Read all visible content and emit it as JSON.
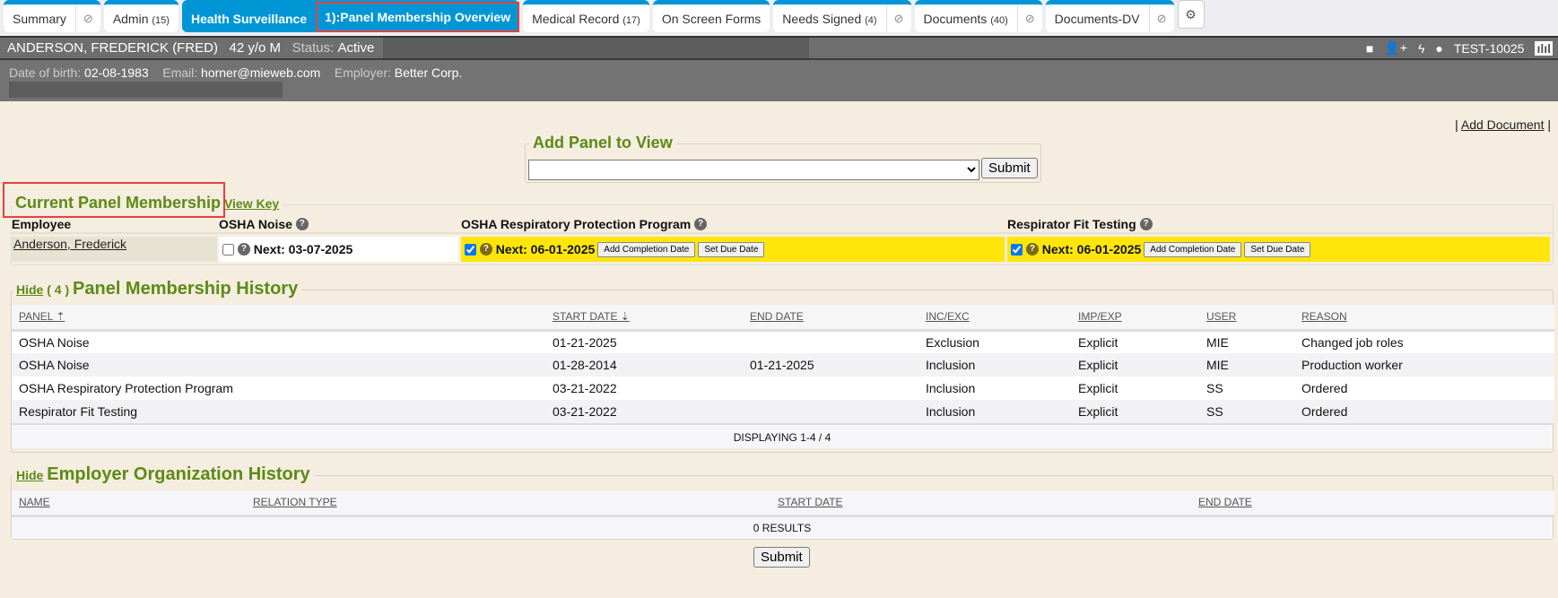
{
  "tabs": [
    {
      "label": "Summary",
      "count": "",
      "ext": true
    },
    {
      "label": "Admin",
      "count": "(15)",
      "ext": false
    },
    {
      "label": "Health Surveillance",
      "sub": "1):Panel Membership Overview",
      "active": true
    },
    {
      "label": "Medical Record",
      "count": "(17)",
      "ext": false
    },
    {
      "label": "On Screen Forms",
      "count": "",
      "ext": false
    },
    {
      "label": "Needs Signed",
      "count": "(4)",
      "ext": true
    },
    {
      "label": "Documents",
      "count": "(40)",
      "ext": true
    },
    {
      "label": "Documents-DV",
      "count": "",
      "ext": true
    }
  ],
  "patient": {
    "name": "ANDERSON, FREDERICK (FRED)",
    "age": "42 y/o M",
    "status_label": "Status:",
    "status": "Active",
    "id": "TEST-10025",
    "dob_label": "Date of birth:",
    "dob": "02-08-1983",
    "email_label": "Email:",
    "email": "horner@mieweb.com",
    "employer_label": "Employer:",
    "employer": "Better Corp."
  },
  "links": {
    "add_document": "Add Document",
    "pipe": "|"
  },
  "add_panel": {
    "title": "Add Panel to View",
    "select_value": "",
    "submit": "Submit"
  },
  "current": {
    "title": "Current Panel Membership",
    "view_key": "View Key",
    "headers": [
      "Employee",
      "OSHA Noise",
      "OSHA Respiratory Protection Program",
      "Respirator Fit Testing"
    ],
    "employee": "Anderson, Frederick",
    "panels": [
      {
        "checked": false,
        "next": "Next: 03-07-2025",
        "highlight": false
      },
      {
        "checked": true,
        "next": "Next: 06-01-2025",
        "highlight": true,
        "add": "Add Completion Date",
        "due": "Set Due Date"
      },
      {
        "checked": true,
        "next": "Next: 06-01-2025",
        "highlight": true,
        "add": "Add Completion Date",
        "due": "Set Due Date"
      }
    ],
    "highlight_color": "#ffe60a"
  },
  "history": {
    "hide": "Hide",
    "count": "( 4 )",
    "title": "Panel Membership History",
    "columns": [
      "PANEL",
      "START DATE",
      "END DATE",
      "INC/EXC",
      "IMP/EXP",
      "USER",
      "REASON"
    ],
    "rows": [
      [
        "OSHA Noise",
        "01-21-2025",
        "",
        "Exclusion",
        "Explicit",
        "MIE",
        "Changed job roles"
      ],
      [
        "OSHA Noise",
        "01-28-2014",
        "01-21-2025",
        "Inclusion",
        "Explicit",
        "MIE",
        "Production worker"
      ],
      [
        "OSHA Respiratory Protection Program",
        "03-21-2022",
        "",
        "Inclusion",
        "Explicit",
        "SS",
        "Ordered"
      ],
      [
        "Respirator Fit Testing",
        "03-21-2022",
        "",
        "Inclusion",
        "Explicit",
        "SS",
        "Ordered"
      ]
    ],
    "footer": "DISPLAYING 1-4 / 4"
  },
  "employer_history": {
    "hide": "Hide",
    "title": "Employer Organization History",
    "columns": [
      "NAME",
      "RELATION TYPE",
      "START DATE",
      "END DATE"
    ],
    "footer": "0 RESULTS"
  },
  "submit": "Submit"
}
